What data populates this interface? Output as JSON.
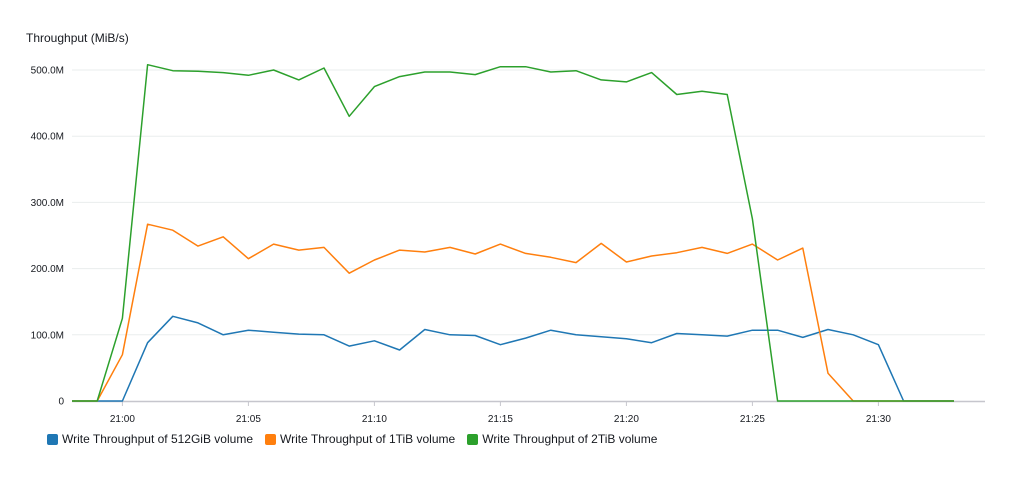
{
  "chart_data": {
    "type": "line",
    "title": "",
    "ylabel": "Throughput (MiB/s)",
    "xlabel": "",
    "ylim": [
      0,
      520
    ],
    "yticks": [
      0,
      100,
      200,
      300,
      400,
      500
    ],
    "ytick_labels": [
      "0",
      "100.0M",
      "200.0M",
      "300.0M",
      "400.0M",
      "500.0M"
    ],
    "xtick_labels": [
      "21:00",
      "21:05",
      "21:10",
      "21:15",
      "21:20",
      "21:25",
      "21:30"
    ],
    "grid": true,
    "legend_position": "bottom-left",
    "x": [
      "20:58",
      "20:59",
      "21:00",
      "21:01",
      "21:02",
      "21:03",
      "21:04",
      "21:05",
      "21:06",
      "21:07",
      "21:08",
      "21:09",
      "21:10",
      "21:11",
      "21:12",
      "21:13",
      "21:14",
      "21:15",
      "21:16",
      "21:17",
      "21:18",
      "21:19",
      "21:20",
      "21:21",
      "21:22",
      "21:23",
      "21:24",
      "21:25",
      "21:26",
      "21:27",
      "21:28",
      "21:29",
      "21:30",
      "21:31",
      "21:32",
      "21:33"
    ],
    "series": [
      {
        "name": "Write Throughput of 512GiB volume",
        "color": "#1f77b4",
        "values": [
          0,
          0,
          0,
          88,
          128,
          118,
          100,
          107,
          104,
          101,
          100,
          83,
          91,
          77,
          108,
          100,
          99,
          85,
          95,
          107,
          100,
          97,
          94,
          88,
          102,
          100,
          98,
          107,
          107,
          96,
          108,
          100,
          85,
          0,
          0,
          0
        ]
      },
      {
        "name": "Write Throughput of 1TiB volume",
        "color": "#ff7f0e",
        "values": [
          0,
          0,
          70,
          267,
          258,
          234,
          248,
          215,
          237,
          228,
          232,
          193,
          213,
          228,
          225,
          232,
          222,
          237,
          223,
          217,
          209,
          238,
          210,
          219,
          224,
          232,
          223,
          237,
          213,
          231,
          42,
          0,
          0,
          0,
          0,
          0
        ]
      },
      {
        "name": "Write Throughput of 2TiB volume",
        "color": "#2ca02c",
        "values": [
          0,
          0,
          125,
          508,
          499,
          498,
          496,
          492,
          500,
          485,
          503,
          430,
          475,
          490,
          497,
          497,
          493,
          505,
          505,
          497,
          499,
          485,
          482,
          496,
          463,
          468,
          463,
          275,
          0,
          0,
          0,
          0,
          0,
          0,
          0,
          0
        ]
      }
    ]
  }
}
